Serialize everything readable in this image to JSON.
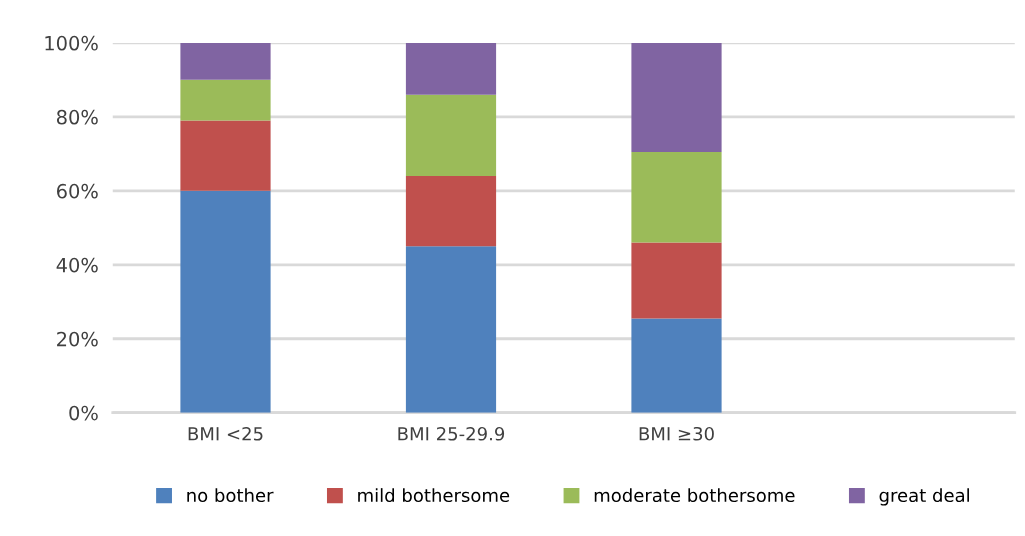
{
  "chart_data": {
    "type": "bar",
    "stacked": true,
    "categories": [
      "BMI <25",
      "BMI 25-29.9",
      "BMI ≥30",
      null
    ],
    "series": [
      {
        "name": "no bother",
        "color": "#4f81bd",
        "values": [
          60,
          45,
          25.5,
          null
        ]
      },
      {
        "name": "mild bothersome",
        "color": "#c0504d",
        "values": [
          19,
          19,
          20.5,
          null
        ]
      },
      {
        "name": "moderate bothersome",
        "color": "#9bbb59",
        "values": [
          11,
          22,
          24.5,
          null
        ]
      },
      {
        "name": "great deal",
        "color": "#8064a2",
        "values": [
          10,
          14,
          29.5,
          null
        ]
      }
    ],
    "ylim": [
      0,
      100
    ],
    "yticks": [
      {
        "value": 0,
        "label": "0%"
      },
      {
        "value": 20,
        "label": "20%"
      },
      {
        "value": 40,
        "label": "40%"
      },
      {
        "value": 60,
        "label": "60%"
      },
      {
        "value": 80,
        "label": "80%"
      },
      {
        "value": 100,
        "label": "100%"
      }
    ],
    "grid": "y",
    "legend": "bottom"
  }
}
